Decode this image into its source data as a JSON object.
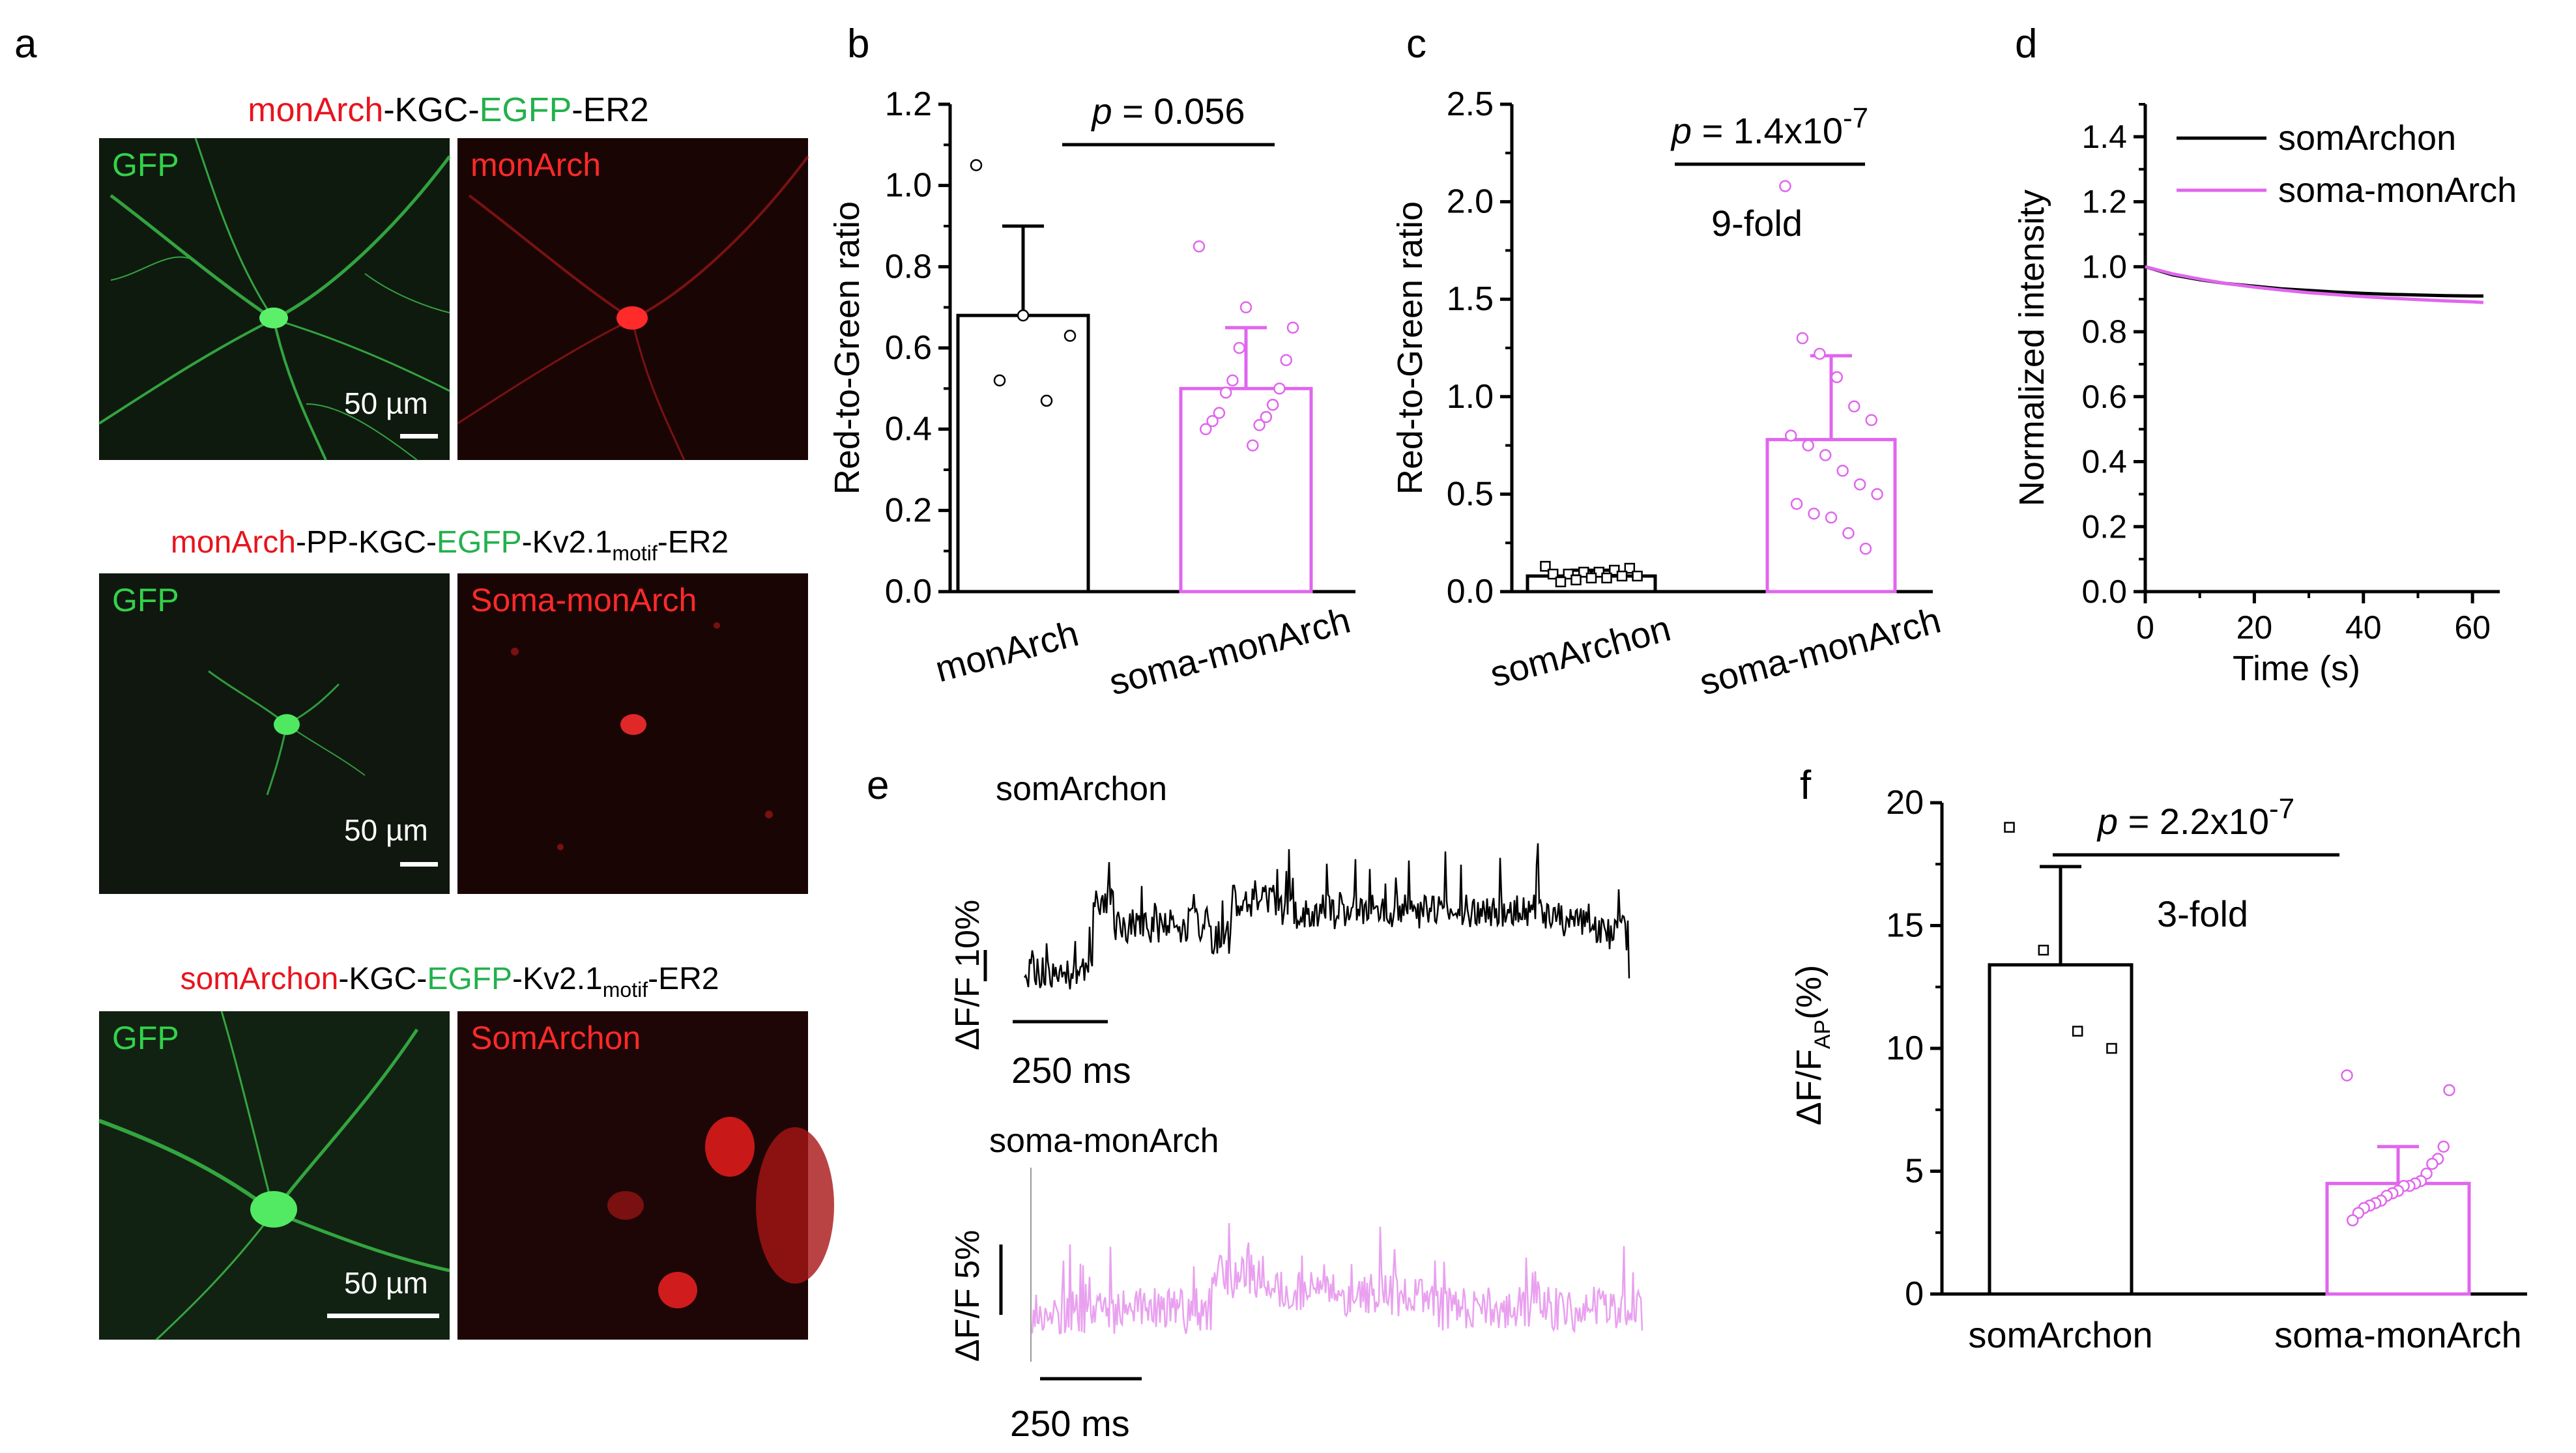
{
  "colors": {
    "black": "#000000",
    "red": "#e8141e",
    "green": "#22b14c",
    "pink": "#e066ee",
    "pink_trace": "#e9a1ef",
    "micro_green": "#33d24a",
    "micro_red": "#ff2a2a",
    "micro_bg": "#0d0d0d"
  },
  "panel_a": {
    "letter": "a",
    "rows": [
      {
        "title_parts": [
          {
            "text": "monArch",
            "color": "red"
          },
          {
            "text": "-KGC-",
            "color": "black"
          },
          {
            "text": "EGFP",
            "color": "green"
          },
          {
            "text": "-ER2",
            "color": "black"
          }
        ],
        "left_label": "GFP",
        "right_label": "monArch",
        "scalebar": "50 µm"
      },
      {
        "title_parts": [
          {
            "text": "monArch",
            "color": "red"
          },
          {
            "text": "-PP-KGC-",
            "color": "black"
          },
          {
            "text": "EGFP",
            "color": "green"
          },
          {
            "text": "-Kv2.1",
            "color": "black"
          },
          {
            "text": "motif",
            "color": "black",
            "sub": true
          },
          {
            "text": "-ER2",
            "color": "black"
          }
        ],
        "left_label": "GFP",
        "right_label": "Soma-monArch",
        "scalebar": "50 µm"
      },
      {
        "title_parts": [
          {
            "text": "somArchon",
            "color": "red"
          },
          {
            "text": "-KGC-",
            "color": "black"
          },
          {
            "text": "EGFP",
            "color": "green"
          },
          {
            "text": "-Kv2.1",
            "color": "black"
          },
          {
            "text": "motif",
            "color": "black",
            "sub": true
          },
          {
            "text": "-ER2",
            "color": "black"
          }
        ],
        "left_label": "GFP",
        "right_label": "SomArchon",
        "scalebar": "50 µm"
      }
    ]
  },
  "chart_data": [
    {
      "panel": "b",
      "type": "bar",
      "ylabel": "Red-to-Green ratio",
      "ylim": [
        0,
        1.2
      ],
      "yticks": [
        "0.0",
        "0.2",
        "0.4",
        "0.6",
        "0.8",
        "1.0",
        "1.2"
      ],
      "categories": [
        "monArch",
        "soma-monArch"
      ],
      "values": [
        0.68,
        0.5
      ],
      "errors": [
        0.22,
        0.15
      ],
      "points": [
        [
          1.05,
          0.68,
          0.63,
          0.52,
          0.47
        ],
        [
          0.85,
          0.7,
          0.65,
          0.6,
          0.57,
          0.52,
          0.5,
          0.49,
          0.46,
          0.44,
          0.43,
          0.42,
          0.41,
          0.4,
          0.36
        ]
      ],
      "annotation": {
        "p_label": "p",
        "p_value": " = 0.056"
      }
    },
    {
      "panel": "c",
      "type": "bar",
      "ylabel": "Red-to-Green ratio",
      "ylim": [
        0,
        2.5
      ],
      "yticks": [
        "0.0",
        "0.5",
        "1.0",
        "1.5",
        "2.0",
        "2.5"
      ],
      "categories": [
        "somArchon",
        "soma-monArch"
      ],
      "values": [
        0.08,
        0.78
      ],
      "errors": [
        0.03,
        0.43
      ],
      "points": [
        [
          0.13,
          0.12,
          0.11,
          0.1,
          0.1,
          0.09,
          0.09,
          0.08,
          0.08,
          0.07,
          0.07,
          0.06,
          0.05
        ],
        [
          2.08,
          1.3,
          1.22,
          1.1,
          0.95,
          0.88,
          0.8,
          0.75,
          0.7,
          0.62,
          0.55,
          0.5,
          0.45,
          0.4,
          0.38,
          0.3,
          0.22
        ]
      ],
      "annotation": {
        "p_label": "p",
        "p_value": " = 1.4x10",
        "p_exp": "-7",
        "fold": "9-fold"
      }
    },
    {
      "panel": "d",
      "type": "line",
      "xlabel": "Time (s)",
      "ylabel": "Normalized intensity",
      "xlim": [
        0,
        65
      ],
      "ylim": [
        0,
        1.5
      ],
      "xticks": [
        "0",
        "20",
        "40",
        "60"
      ],
      "yticks": [
        "0.0",
        "0.2",
        "0.4",
        "0.6",
        "0.8",
        "1.0",
        "1.2",
        "1.4"
      ],
      "series": [
        {
          "name": "somArchon",
          "color": "black",
          "x": [
            0,
            5,
            10,
            15,
            20,
            25,
            30,
            35,
            40,
            45,
            50,
            55,
            60,
            62
          ],
          "y": [
            1.0,
            0.975,
            0.96,
            0.948,
            0.94,
            0.932,
            0.927,
            0.922,
            0.918,
            0.915,
            0.913,
            0.911,
            0.91,
            0.91
          ]
        },
        {
          "name": "soma-monArch",
          "color": "pink",
          "x": [
            0,
            5,
            10,
            15,
            20,
            25,
            30,
            35,
            40,
            45,
            50,
            55,
            60,
            62
          ],
          "y": [
            1.0,
            0.978,
            0.962,
            0.948,
            0.937,
            0.928,
            0.92,
            0.914,
            0.908,
            0.903,
            0.899,
            0.895,
            0.892,
            0.89
          ]
        }
      ]
    },
    {
      "panel": "f",
      "type": "bar",
      "ylabel": "ΔF/F",
      "ylabel_sub": "AP",
      "ylabel_tail": "(%)",
      "ylim": [
        0,
        20
      ],
      "yticks": [
        "0",
        "5",
        "10",
        "15",
        "20"
      ],
      "categories": [
        "somArchon",
        "soma-monArch"
      ],
      "values": [
        13.4,
        4.5
      ],
      "errors": [
        4.0,
        1.5
      ],
      "points": [
        [
          19.0,
          14.0,
          10.7,
          10.0
        ],
        [
          8.9,
          8.3,
          6.0,
          5.5,
          5.3,
          4.9,
          4.6,
          4.5,
          4.4,
          4.4,
          4.2,
          4.1,
          4.0,
          3.8,
          3.7,
          3.6,
          3.5,
          3.3,
          3.0
        ]
      ],
      "annotation": {
        "p_label": "p",
        "p_value": " = 2.2x10",
        "p_exp": "-7",
        "fold": "3-fold"
      }
    }
  ],
  "panel_e": {
    "letter": "e",
    "traces": [
      {
        "label": "somArchon",
        "color": "black",
        "scale_y": "ΔF/F 10%",
        "scale_x": "250 ms"
      },
      {
        "label": "soma-monArch",
        "color": "pink_trace",
        "scale_y": "ΔF/F 5%",
        "scale_x": "250 ms"
      }
    ]
  }
}
